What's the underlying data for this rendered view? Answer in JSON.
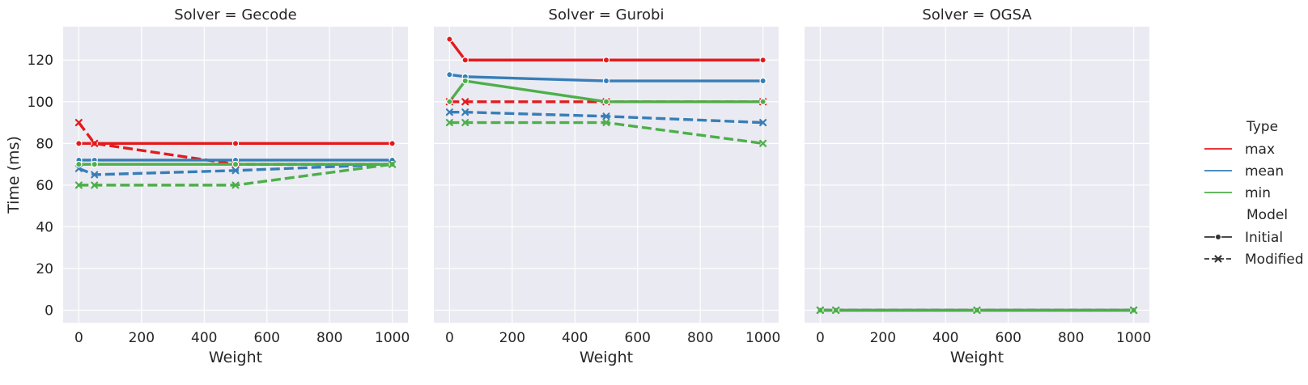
{
  "chart_data": {
    "type": "line",
    "ylabel": "Time (ms)",
    "xlabel": "Weight",
    "x": [
      0,
      50,
      500,
      1000
    ],
    "xlim": [
      -50,
      1050
    ],
    "ylim": [
      -6,
      136
    ],
    "xticks": [
      0,
      200,
      400,
      600,
      800,
      1000
    ],
    "yticks": [
      0,
      20,
      40,
      60,
      80,
      100,
      120
    ],
    "colors": {
      "max": "#e41a1c",
      "mean": "#377eb8",
      "min": "#4daf4a"
    },
    "legend": {
      "position": "right",
      "type_title": "Type",
      "type_items": [
        "max",
        "mean",
        "min"
      ],
      "model_title": "Model",
      "model_items": [
        "Initial",
        "Modified"
      ]
    },
    "panels": [
      {
        "title": "Solver = Gecode",
        "series": [
          {
            "type": "max",
            "model": "Initial",
            "values": [
              80,
              80,
              80,
              80
            ]
          },
          {
            "type": "max",
            "model": "Modified",
            "values": [
              90,
              80,
              70,
              70
            ]
          },
          {
            "type": "mean",
            "model": "Initial",
            "values": [
              72,
              72,
              72,
              72
            ]
          },
          {
            "type": "mean",
            "model": "Modified",
            "values": [
              68,
              65,
              67,
              70
            ]
          },
          {
            "type": "min",
            "model": "Initial",
            "values": [
              70,
              70,
              70,
              70
            ]
          },
          {
            "type": "min",
            "model": "Modified",
            "values": [
              60,
              60,
              60,
              70
            ]
          }
        ]
      },
      {
        "title": "Solver = Gurobi",
        "series": [
          {
            "type": "max",
            "model": "Initial",
            "values": [
              130,
              120,
              120,
              120
            ]
          },
          {
            "type": "max",
            "model": "Modified",
            "values": [
              100,
              100,
              100,
              100
            ]
          },
          {
            "type": "mean",
            "model": "Initial",
            "values": [
              113,
              112,
              110,
              110
            ]
          },
          {
            "type": "mean",
            "model": "Modified",
            "values": [
              95,
              95,
              93,
              90
            ]
          },
          {
            "type": "min",
            "model": "Initial",
            "values": [
              100,
              110,
              100,
              100
            ]
          },
          {
            "type": "min",
            "model": "Modified",
            "values": [
              90,
              90,
              90,
              80
            ]
          }
        ]
      },
      {
        "title": "Solver = OGSA",
        "series": [
          {
            "type": "max",
            "model": "Initial",
            "values": [
              0,
              0,
              0,
              0
            ]
          },
          {
            "type": "max",
            "model": "Modified",
            "values": [
              0,
              0,
              0,
              0
            ]
          },
          {
            "type": "mean",
            "model": "Initial",
            "values": [
              0,
              0,
              0,
              0
            ]
          },
          {
            "type": "mean",
            "model": "Modified",
            "values": [
              0,
              0,
              0,
              0
            ]
          },
          {
            "type": "min",
            "model": "Initial",
            "values": [
              0,
              0,
              0,
              0
            ]
          },
          {
            "type": "min",
            "model": "Modified",
            "values": [
              0,
              0,
              0,
              0
            ]
          }
        ]
      }
    ]
  }
}
